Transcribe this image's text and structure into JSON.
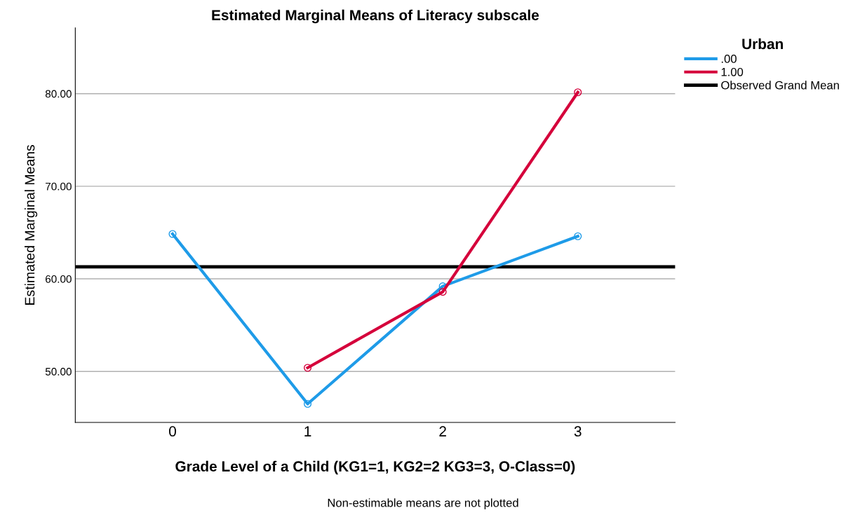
{
  "chart_data": {
    "type": "line",
    "title": "Estimated Marginal Means of Literacy subscale",
    "xlabel": "Grade Level of a Child (KG1=1, KG2=2 KG3=3, O-Class=0)",
    "ylabel": "Estimated Marginal Means",
    "legend_title": "Urban",
    "categories": [
      "0",
      "1",
      "2",
      "3"
    ],
    "series": [
      {
        "name": ".00",
        "color": "#1e9be8",
        "values": [
          64.85,
          46.5,
          59.2,
          64.6
        ]
      },
      {
        "name": "1.00",
        "color": "#d5003b",
        "values": [
          null,
          50.4,
          58.6,
          80.15
        ]
      }
    ],
    "ref_lines": [
      {
        "axis": "y",
        "value": 61.3,
        "label": "Observed Grand Mean",
        "color": "#000000"
      }
    ],
    "ylim": [
      44.5,
      87.1
    ],
    "yticks": [
      {
        "value": 50,
        "label": "50.00"
      },
      {
        "value": 60,
        "label": "60.00"
      },
      {
        "value": 70,
        "label": "70.00"
      },
      {
        "value": 80,
        "label": "80.00"
      }
    ],
    "grid": "y",
    "marker": "circle",
    "line_style": "solid",
    "legend": "top right",
    "annotations": [
      "Non-estimable means are not plotted"
    ]
  }
}
